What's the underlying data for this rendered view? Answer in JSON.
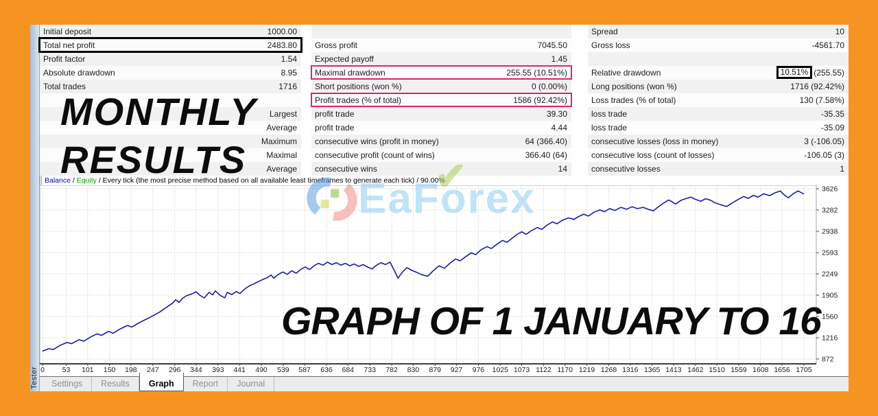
{
  "colors": {
    "frame_orange": "#f79421",
    "highlight_red": "#e0245e",
    "highlight_black": "#000000",
    "balance_line": "#1a1aa8",
    "legend_balance": "#0000b4",
    "legend_equity": "#00a000"
  },
  "tester_panel": {
    "sidebar_label": "Tester"
  },
  "tabs": [
    {
      "label": "Settings",
      "active": false
    },
    {
      "label": "Results",
      "active": false
    },
    {
      "label": "Graph",
      "active": true
    },
    {
      "label": "Report",
      "active": false
    },
    {
      "label": "Journal",
      "active": false
    }
  ],
  "overlays": {
    "line1": "MONTHLY",
    "line2": "RESULTS",
    "graph_caption": "GRAPH OF 1 JANUARY TO 16"
  },
  "watermark": {
    "prefix": "EaF",
    "o": "o",
    "suffix": "rex",
    "check": "✔"
  },
  "stats": {
    "rows": [
      {
        "cells": [
          {
            "label": "Initial deposit",
            "value": "1000.00"
          },
          {
            "label": "",
            "value": ""
          },
          {
            "label": "Spread",
            "value": "10"
          }
        ]
      },
      {
        "cells": [
          {
            "label": "Total net profit",
            "value": "2483.80",
            "box": "black"
          },
          {
            "label": "Gross profit",
            "value": "7045.50"
          },
          {
            "label": "Gross loss",
            "value": "-4561.70"
          }
        ]
      },
      {
        "cells": [
          {
            "label": "Profit factor",
            "value": "1.54"
          },
          {
            "label": "Expected payoff",
            "value": "1.45"
          },
          {
            "label": "",
            "value": ""
          }
        ]
      },
      {
        "cells": [
          {
            "label": "Absolute drawdown",
            "value": "8.95"
          },
          {
            "label": "Maximal drawdown",
            "value": "255.55 (10.51%)",
            "box": "red"
          },
          {
            "label": "Relative drawdown",
            "value": "(255.55)",
            "value_boxed": "10.51%"
          }
        ]
      },
      {
        "cells": [
          {
            "label": "Total trades",
            "value": "1716"
          },
          {
            "label": "Short positions (won %)",
            "value": "0 (0.00%)"
          },
          {
            "label": "Long positions (won %)",
            "value": "1716 (92.42%)"
          }
        ]
      },
      {
        "cells": [
          {
            "label": "",
            "value": ""
          },
          {
            "label": "Profit trades (% of total)",
            "value": "1586 (92.42%)",
            "box": "red"
          },
          {
            "label": "Loss trades (% of total)",
            "value": "130 (7.58%)"
          }
        ]
      },
      {
        "cells": [
          {
            "label": "",
            "value": "Largest"
          },
          {
            "label": "profit trade",
            "value": "39.30"
          },
          {
            "label": "loss trade",
            "value": "-35.35"
          }
        ]
      },
      {
        "cells": [
          {
            "label": "",
            "value": "Average"
          },
          {
            "label": "profit trade",
            "value": "4.44"
          },
          {
            "label": "loss trade",
            "value": "-35.09"
          }
        ]
      },
      {
        "cells": [
          {
            "label": "",
            "value": "Maximum"
          },
          {
            "label": "consecutive wins (profit in money)",
            "value": "64 (366.40)"
          },
          {
            "label": "consecutive losses (loss in money)",
            "value": "3 (-106.05)"
          }
        ]
      },
      {
        "cells": [
          {
            "label": "",
            "value": "Maximal"
          },
          {
            "label": "consecutive profit (count of wins)",
            "value": "366.40 (64)"
          },
          {
            "label": "consecutive loss (count of losses)",
            "value": "-106.05 (3)"
          }
        ]
      },
      {
        "cells": [
          {
            "label": "",
            "value": "Average"
          },
          {
            "label": "consecutive wins",
            "value": "14"
          },
          {
            "label": "consecutive losses",
            "value": "1"
          }
        ]
      }
    ]
  },
  "chart_data": {
    "type": "line",
    "legend_parts": [
      {
        "text": "Balance",
        "color": "#0000b4"
      },
      {
        "text": " / ",
        "color": "#000000"
      },
      {
        "text": "Equity",
        "color": "#00a000"
      },
      {
        "text": " / Every tick (the most precise method based on all available least timeframes to generate each tick) / 90.00%",
        "color": "#000000"
      }
    ],
    "x_ticks": [
      0,
      53,
      101,
      150,
      198,
      247,
      296,
      344,
      393,
      441,
      490,
      539,
      587,
      636,
      684,
      733,
      782,
      830,
      879,
      927,
      976,
      1025,
      1073,
      1122,
      1170,
      1219,
      1268,
      1316,
      1365,
      1413,
      1462,
      1510,
      1559,
      1608,
      1656,
      1705
    ],
    "y_ticks": [
      872,
      1216,
      1560,
      1905,
      2249,
      2593,
      2938,
      3282,
      3626
    ],
    "x_range": [
      0,
      1705
    ],
    "y_range": [
      872,
      3626
    ],
    "grid": true,
    "series": [
      {
        "name": "Balance",
        "color": "#1a1aa8",
        "points": [
          [
            0,
            1000
          ],
          [
            14,
            1040
          ],
          [
            24,
            1025
          ],
          [
            40,
            1095
          ],
          [
            55,
            1140
          ],
          [
            65,
            1120
          ],
          [
            82,
            1185
          ],
          [
            92,
            1160
          ],
          [
            108,
            1230
          ],
          [
            122,
            1280
          ],
          [
            132,
            1255
          ],
          [
            148,
            1320
          ],
          [
            158,
            1290
          ],
          [
            174,
            1360
          ],
          [
            190,
            1415
          ],
          [
            200,
            1390
          ],
          [
            214,
            1450
          ],
          [
            228,
            1500
          ],
          [
            240,
            1545
          ],
          [
            252,
            1590
          ],
          [
            262,
            1630
          ],
          [
            272,
            1680
          ],
          [
            282,
            1730
          ],
          [
            292,
            1780
          ],
          [
            298,
            1830
          ],
          [
            306,
            1790
          ],
          [
            313,
            1850
          ],
          [
            322,
            1895
          ],
          [
            334,
            1925
          ],
          [
            344,
            1960
          ],
          [
            352,
            1905
          ],
          [
            362,
            1860
          ],
          [
            373,
            1950
          ],
          [
            381,
            1910
          ],
          [
            387,
            1975
          ],
          [
            398,
            1900
          ],
          [
            408,
            1862
          ],
          [
            414,
            1950
          ],
          [
            424,
            1915
          ],
          [
            434,
            1965
          ],
          [
            442,
            1930
          ],
          [
            452,
            2000
          ],
          [
            462,
            2050
          ],
          [
            472,
            2085
          ],
          [
            482,
            2120
          ],
          [
            492,
            2155
          ],
          [
            502,
            2185
          ],
          [
            512,
            2230
          ],
          [
            518,
            2180
          ],
          [
            528,
            2240
          ],
          [
            538,
            2280
          ],
          [
            548,
            2240
          ],
          [
            558,
            2300
          ],
          [
            568,
            2260
          ],
          [
            578,
            2320
          ],
          [
            588,
            2360
          ],
          [
            598,
            2320
          ],
          [
            608,
            2380
          ],
          [
            618,
            2420
          ],
          [
            628,
            2390
          ],
          [
            638,
            2440
          ],
          [
            648,
            2400
          ],
          [
            658,
            2430
          ],
          [
            668,
            2390
          ],
          [
            678,
            2420
          ],
          [
            688,
            2380
          ],
          [
            698,
            2410
          ],
          [
            708,
            2370
          ],
          [
            718,
            2400
          ],
          [
            728,
            2360
          ],
          [
            738,
            2330
          ],
          [
            748,
            2390
          ],
          [
            758,
            2430
          ],
          [
            768,
            2400
          ],
          [
            778,
            2440
          ],
          [
            788,
            2300
          ],
          [
            796,
            2180
          ],
          [
            806,
            2280
          ],
          [
            816,
            2350
          ],
          [
            826,
            2310
          ],
          [
            836,
            2280
          ],
          [
            848,
            2240
          ],
          [
            862,
            2210
          ],
          [
            875,
            2300
          ],
          [
            888,
            2380
          ],
          [
            900,
            2340
          ],
          [
            912,
            2420
          ],
          [
            925,
            2490
          ],
          [
            935,
            2460
          ],
          [
            948,
            2530
          ],
          [
            960,
            2590
          ],
          [
            970,
            2560
          ],
          [
            982,
            2640
          ],
          [
            995,
            2690
          ],
          [
            1005,
            2660
          ],
          [
            1018,
            2730
          ],
          [
            1030,
            2790
          ],
          [
            1040,
            2760
          ],
          [
            1052,
            2830
          ],
          [
            1063,
            2890
          ],
          [
            1073,
            2930
          ],
          [
            1083,
            2890
          ],
          [
            1095,
            2950
          ],
          [
            1108,
            3000
          ],
          [
            1118,
            2970
          ],
          [
            1130,
            3040
          ],
          [
            1142,
            3090
          ],
          [
            1152,
            3060
          ],
          [
            1165,
            3120
          ],
          [
            1178,
            3155
          ],
          [
            1190,
            3130
          ],
          [
            1200,
            3175
          ],
          [
            1212,
            3215
          ],
          [
            1222,
            3185
          ],
          [
            1235,
            3245
          ],
          [
            1248,
            3285
          ],
          [
            1258,
            3255
          ],
          [
            1270,
            3305
          ],
          [
            1282,
            3275
          ],
          [
            1295,
            3325
          ],
          [
            1308,
            3295
          ],
          [
            1320,
            3335
          ],
          [
            1332,
            3305
          ],
          [
            1345,
            3325
          ],
          [
            1358,
            3290
          ],
          [
            1368,
            3270
          ],
          [
            1380,
            3340
          ],
          [
            1392,
            3400
          ],
          [
            1402,
            3445
          ],
          [
            1410,
            3415
          ],
          [
            1418,
            3380
          ],
          [
            1430,
            3440
          ],
          [
            1442,
            3470
          ],
          [
            1452,
            3490
          ],
          [
            1462,
            3455
          ],
          [
            1474,
            3425
          ],
          [
            1485,
            3465
          ],
          [
            1496,
            3440
          ],
          [
            1506,
            3400
          ],
          [
            1518,
            3370
          ],
          [
            1532,
            3340
          ],
          [
            1545,
            3400
          ],
          [
            1558,
            3455
          ],
          [
            1570,
            3500
          ],
          [
            1580,
            3470
          ],
          [
            1592,
            3520
          ],
          [
            1602,
            3490
          ],
          [
            1615,
            3545
          ],
          [
            1628,
            3515
          ],
          [
            1640,
            3560
          ],
          [
            1652,
            3590
          ],
          [
            1662,
            3520
          ],
          [
            1670,
            3480
          ],
          [
            1682,
            3550
          ],
          [
            1692,
            3590
          ],
          [
            1705,
            3540
          ]
        ]
      }
    ]
  }
}
